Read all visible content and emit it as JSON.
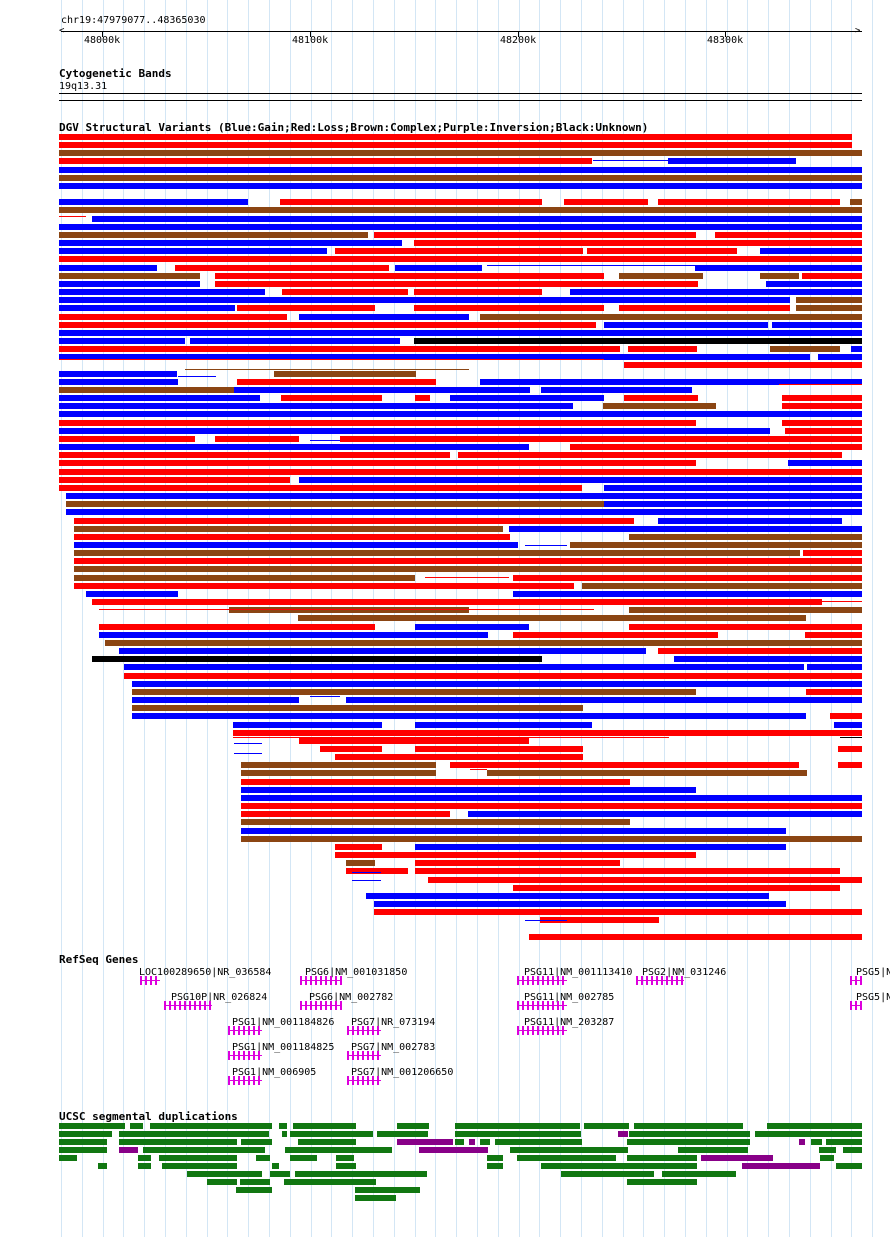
{
  "position": "chr19:47979077..48365030",
  "ruler": {
    "ticks": [
      "48000k",
      "48100k",
      "48200k",
      "48300k"
    ]
  },
  "tracks": {
    "cytoband": {
      "title": "Cytogenetic Bands",
      "band": "19q13.31"
    },
    "dgv": {
      "title": "DGV Structural Variants (Blue:Gain;Red:Loss;Brown:Complex;Purple:Inversion;Black:Unknown)"
    },
    "refseq": {
      "title": "RefSeq Genes",
      "genes": [
        "LOC100289650|NR_036584",
        "PSG10P|NR_026824",
        "PSG1|NM_001184826",
        "PSG1|NM_001184825",
        "PSG1|NM_006905",
        "PSG6|NM_001031850",
        "PSG6|NM_002782",
        "PSG7|NR_073194",
        "PSG7|NM_002783",
        "PSG7|NM_001206650",
        "PSG11|NM_001113410",
        "PSG11|NM_002785",
        "PSG11|NM_203287",
        "PSG2|NM_031246",
        "PSG5|N",
        "PSG5|N"
      ]
    },
    "segdup": {
      "title": "UCSC segmental duplications"
    }
  },
  "colors": {
    "gain": "#0000ff",
    "loss": "#ff0000",
    "complex": "#8b4513",
    "unknown": "#000000",
    "gene": "#dd00dd",
    "segdup": "#117711",
    "segdup_alt": "#880088",
    "grid": "#d3e6f5"
  }
}
